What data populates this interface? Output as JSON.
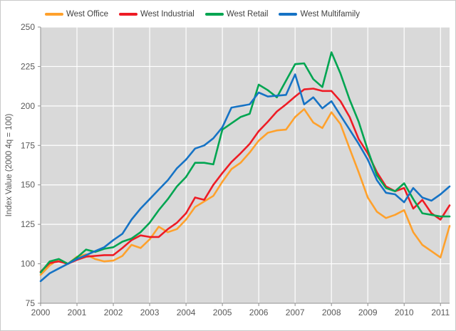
{
  "chart": {
    "y_axis": {
      "title": "Index Value (2000 4q = 100)"
    }
  },
  "chart_data": {
    "type": "line",
    "title": "",
    "xlabel": "",
    "ylabel": "Index Value (2000 4q = 100)",
    "legend_position": "top",
    "grid": true,
    "plot_bg": "#d9d9d9",
    "grid_color": "#ffffff",
    "axis_color": "#8c8c8c",
    "tick_text_color": "#595959",
    "xlim": [
      2000,
      2011.25
    ],
    "ylim": [
      75,
      250
    ],
    "x_step": 0.25,
    "x_start": 2000,
    "x_ticks": [
      2000,
      2001,
      2002,
      2003,
      2004,
      2005,
      2006,
      2007,
      2008,
      2009,
      2010,
      2011
    ],
    "y_ticks": [
      75,
      100,
      125,
      150,
      175,
      200,
      225,
      250
    ],
    "frequency": "quarterly",
    "series": [
      {
        "name": "West Office",
        "color": "#ffa12c",
        "values": [
          93,
          99,
          103,
          100,
          104.5,
          106,
          103,
          101.5,
          102,
          105,
          112,
          110,
          115.5,
          123.5,
          120,
          122,
          128,
          136,
          139.5,
          143,
          152,
          160,
          164,
          170.5,
          178,
          183,
          184.5,
          185,
          193,
          198,
          189.5,
          186,
          196,
          188.5,
          173,
          158,
          142,
          133,
          129,
          131,
          134,
          120,
          112,
          108,
          104,
          124
        ]
      },
      {
        "name": "West Industrial",
        "color": "#ee1c25",
        "values": [
          95,
          100.5,
          101.5,
          100,
          102.5,
          104.5,
          105,
          105.5,
          105.5,
          110,
          115,
          118,
          117,
          117,
          122,
          126,
          132,
          142,
          140.5,
          150,
          157.5,
          164.5,
          170,
          176,
          184,
          190,
          196.5,
          201,
          206,
          210.5,
          211,
          209.5,
          209.5,
          203,
          193,
          179,
          170,
          158,
          149,
          146,
          148,
          135,
          140.5,
          132,
          128,
          137
        ]
      },
      {
        "name": "West Retail",
        "color": "#00a551",
        "values": [
          94.5,
          101.5,
          103,
          100,
          104,
          109,
          107.5,
          109.5,
          110.5,
          114,
          116,
          120,
          126,
          134,
          141,
          149,
          155,
          164,
          164,
          163,
          185,
          189,
          193,
          195,
          213.5,
          210,
          205.5,
          216,
          226.5,
          227,
          217,
          212,
          234,
          220.5,
          204,
          190,
          172,
          156,
          148,
          146,
          151,
          141,
          132,
          131,
          130,
          130
        ]
      },
      {
        "name": "West Multifamily",
        "color": "#1673c5",
        "values": [
          89,
          94,
          97,
          100,
          103,
          105.5,
          108,
          110.5,
          115,
          119,
          128,
          135,
          141,
          147,
          153,
          160.5,
          166,
          173,
          175,
          179.5,
          186.5,
          199,
          200,
          201,
          208.5,
          206,
          206.5,
          207,
          220,
          201,
          205.5,
          198.5,
          203,
          194,
          185,
          176,
          166,
          153,
          145,
          144,
          139,
          148,
          142,
          140,
          144,
          149
        ]
      }
    ]
  }
}
